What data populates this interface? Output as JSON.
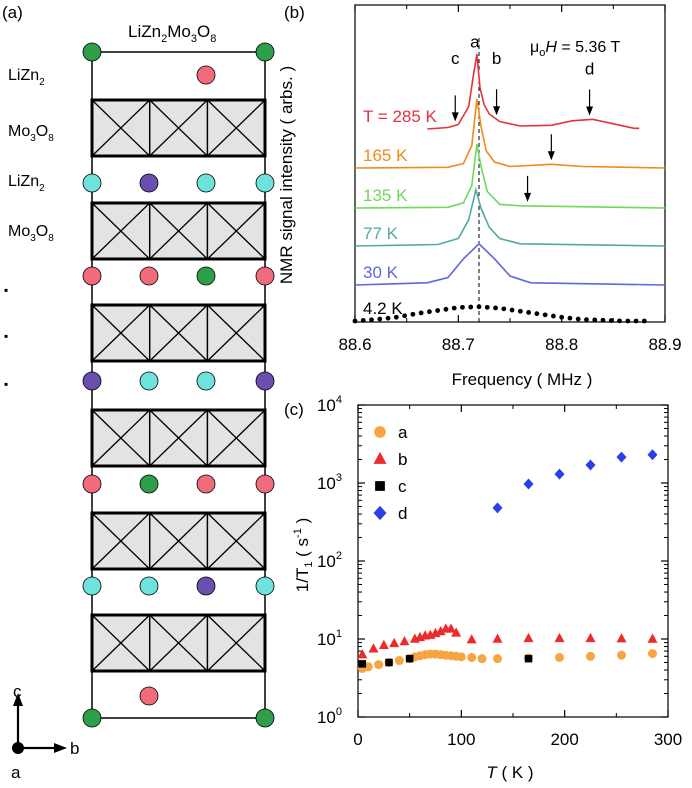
{
  "panel_a": {
    "label": "(a)",
    "formula": [
      "LiZn",
      "2",
      "Mo",
      "3",
      "O",
      "8"
    ],
    "layers": [
      {
        "parts": [
          "LiZn",
          "2"
        ]
      },
      {
        "parts": [
          "Mo",
          "3",
          "O",
          "8"
        ]
      },
      {
        "parts": [
          "LiZn",
          "2"
        ]
      },
      {
        "parts": [
          "Mo",
          "3",
          "O",
          "8"
        ]
      }
    ],
    "ellipsis": "▪",
    "axes": {
      "c": "c",
      "b": "b",
      "a": "a"
    },
    "atom_colors": {
      "green": "#2e9e4a",
      "pink": "#f06b7c",
      "cyan": "#6ee3dc",
      "purple": "#6a4fb0",
      "gray": "#e3e3e3"
    },
    "atom_rows": [
      [
        "green",
        "",
        "",
        "green"
      ],
      [
        "",
        "",
        "pink",
        ""
      ],
      [
        "cyan",
        "purple",
        "cyan",
        "cyan"
      ],
      [
        "pink",
        "pink",
        "green",
        "pink"
      ],
      [
        "purple",
        "cyan",
        "cyan",
        "purple"
      ],
      [
        "pink",
        "green",
        "pink",
        "pink"
      ],
      [
        "cyan",
        "cyan",
        "purple",
        "cyan"
      ],
      [
        "",
        "pink",
        "",
        ""
      ],
      [
        "green",
        "",
        "",
        "green"
      ]
    ]
  },
  "chart_data": [
    {
      "type": "line",
      "panel_label": "(b)",
      "xlabel": "Frequency ( MHz )",
      "ylabel": "NMR signal intensity ( arbs. )",
      "xlim": [
        88.6,
        88.9
      ],
      "xticks": [
        "88.6",
        "88.7",
        "88.8",
        "88.9"
      ],
      "field_parts": [
        "μ",
        "o",
        "H",
        " = 5.36 T"
      ],
      "dashed_line_x": 88.72,
      "peak_labels": [
        {
          "text": "a",
          "x": 88.716,
          "offset": 1.09
        },
        {
          "text": "c",
          "x": 88.697,
          "offset": 0.87
        },
        {
          "text": "b",
          "x": 88.737,
          "offset": 0.87
        },
        {
          "text": "d",
          "x": 88.827,
          "offset": 0.73
        }
      ],
      "series": [
        {
          "name": "T = 285 K",
          "color": "#e8313b",
          "offset": 5,
          "shape": [
            [
              88.67,
              0.0
            ],
            [
              88.69,
              0.02
            ],
            [
              88.7,
              0.06
            ],
            [
              88.71,
              0.3
            ],
            [
              88.715,
              0.75
            ],
            [
              88.718,
              1.0
            ],
            [
              88.721,
              0.55
            ],
            [
              88.725,
              0.32
            ],
            [
              88.73,
              0.2
            ],
            [
              88.74,
              0.1
            ],
            [
              88.76,
              0.04
            ],
            [
              88.79,
              0.05
            ],
            [
              88.81,
              0.11
            ],
            [
              88.83,
              0.13
            ],
            [
              88.85,
              0.07
            ],
            [
              88.87,
              0.01
            ],
            [
              88.875,
              0.01
            ]
          ]
        },
        {
          "name": "165 K",
          "color": "#f08a1a",
          "offset": 4,
          "shape": [
            [
              88.6,
              0.0
            ],
            [
              88.69,
              0.01
            ],
            [
              88.705,
              0.06
            ],
            [
              88.713,
              0.3
            ],
            [
              88.718,
              0.92
            ],
            [
              88.722,
              0.55
            ],
            [
              88.727,
              0.23
            ],
            [
              88.735,
              0.08
            ],
            [
              88.75,
              0.02
            ],
            [
              88.79,
              0.05
            ],
            [
              88.82,
              0.02
            ],
            [
              88.9,
              0.0
            ]
          ]
        },
        {
          "name": "135 K",
          "color": "#6ed95a",
          "offset": 3,
          "shape": [
            [
              88.6,
              0.0
            ],
            [
              88.69,
              0.01
            ],
            [
              88.705,
              0.07
            ],
            [
              88.713,
              0.3
            ],
            [
              88.718,
              0.85
            ],
            [
              88.722,
              0.55
            ],
            [
              88.728,
              0.22
            ],
            [
              88.74,
              0.05
            ],
            [
              88.76,
              0.03
            ],
            [
              88.9,
              0.0
            ]
          ]
        },
        {
          "name": "77 K",
          "color": "#55a8a3",
          "offset": 2,
          "shape": [
            [
              88.6,
              0.0
            ],
            [
              88.68,
              0.02
            ],
            [
              88.7,
              0.1
            ],
            [
              88.71,
              0.35
            ],
            [
              88.717,
              0.75
            ],
            [
              88.722,
              0.5
            ],
            [
              88.73,
              0.25
            ],
            [
              88.74,
              0.1
            ],
            [
              88.76,
              0.03
            ],
            [
              88.9,
              0.0
            ]
          ]
        },
        {
          "name": "30 K",
          "color": "#5e66e0",
          "offset": 1,
          "shape": [
            [
              88.6,
              0.0
            ],
            [
              88.67,
              0.03
            ],
            [
              88.69,
              0.1
            ],
            [
              88.705,
              0.35
            ],
            [
              88.72,
              0.55
            ],
            [
              88.735,
              0.35
            ],
            [
              88.75,
              0.12
            ],
            [
              88.77,
              0.03
            ],
            [
              88.9,
              0.0
            ]
          ]
        },
        {
          "name": "4.2 K",
          "color": "#000000",
          "offset": 0,
          "style": "dots",
          "shape": [
            [
              88.6,
              0.0
            ],
            [
              88.62,
              0.02
            ],
            [
              88.64,
              0.05
            ],
            [
              88.66,
              0.1
            ],
            [
              88.68,
              0.14
            ],
            [
              88.7,
              0.18
            ],
            [
              88.72,
              0.19
            ],
            [
              88.74,
              0.17
            ],
            [
              88.76,
              0.13
            ],
            [
              88.78,
              0.09
            ],
            [
              88.8,
              0.05
            ],
            [
              88.82,
              0.02
            ],
            [
              88.84,
              0.01
            ],
            [
              88.86,
              0.0
            ],
            [
              88.88,
              0.0
            ]
          ]
        }
      ],
      "arrows": [
        {
          "series": "T = 285 K",
          "x": 88.697
        },
        {
          "series": "T = 285 K",
          "x": 88.737
        },
        {
          "series": "T = 285 K",
          "x": 88.827
        },
        {
          "series": "165 K",
          "x": 88.79
        },
        {
          "series": "135 K",
          "x": 88.767
        }
      ]
    },
    {
      "type": "scatter",
      "panel_label": "(c)",
      "xlabel_parts": [
        "T",
        " ( K )"
      ],
      "ylabel_parts": [
        "1/T",
        "1",
        " ( s",
        "-1",
        " )"
      ],
      "x_scale": "linear",
      "y_scale": "log",
      "xlim": [
        0,
        300
      ],
      "ylim": [
        1,
        10000
      ],
      "xticks": [
        "0",
        "100",
        "200",
        "300"
      ],
      "yticks": [
        [
          "10",
          "0"
        ],
        [
          "10",
          "1"
        ],
        [
          "10",
          "2"
        ],
        [
          "10",
          "3"
        ],
        [
          "10",
          "4"
        ]
      ],
      "legend_position": "top-left",
      "series": [
        {
          "name": "a",
          "marker": "circle",
          "color": "#f7a540",
          "points": [
            [
              4.2,
              4.2
            ],
            [
              10,
              4.4
            ],
            [
              20,
              4.7
            ],
            [
              30,
              5.0
            ],
            [
              40,
              5.3
            ],
            [
              50,
              5.6
            ],
            [
              55,
              5.9
            ],
            [
              60,
              6.1
            ],
            [
              65,
              6.3
            ],
            [
              70,
              6.4
            ],
            [
              75,
              6.4
            ],
            [
              80,
              6.3
            ],
            [
              85,
              6.2
            ],
            [
              90,
              6.1
            ],
            [
              95,
              6.0
            ],
            [
              100,
              5.9
            ],
            [
              110,
              5.8
            ],
            [
              120,
              5.6
            ],
            [
              135,
              5.6
            ],
            [
              165,
              5.7
            ],
            [
              195,
              5.8
            ],
            [
              225,
              6.0
            ],
            [
              255,
              6.2
            ],
            [
              285,
              6.5
            ]
          ]
        },
        {
          "name": "b",
          "marker": "triangle",
          "color": "#ee2b2b",
          "points": [
            [
              4.2,
              6.3
            ],
            [
              15,
              7.5
            ],
            [
              25,
              8.3
            ],
            [
              35,
              8.8
            ],
            [
              45,
              9.3
            ],
            [
              55,
              10.0
            ],
            [
              60,
              10.5
            ],
            [
              65,
              11.0
            ],
            [
              70,
              11.2
            ],
            [
              75,
              11.8
            ],
            [
              80,
              12.5
            ],
            [
              85,
              13.5
            ],
            [
              90,
              13.5
            ],
            [
              95,
              12.0
            ],
            [
              110,
              9.8
            ],
            [
              135,
              10.0
            ],
            [
              165,
              10.2
            ],
            [
              195,
              10.2
            ],
            [
              225,
              10.2
            ],
            [
              255,
              10.1
            ],
            [
              285,
              10.0
            ]
          ]
        },
        {
          "name": "c",
          "marker": "square",
          "color": "#000000",
          "points": [
            [
              4.2,
              4.8
            ],
            [
              30,
              5.0
            ],
            [
              50,
              5.6
            ],
            [
              165,
              5.6
            ]
          ]
        },
        {
          "name": "d",
          "marker": "diamond",
          "color": "#2b3fe8",
          "points": [
            [
              135,
              480
            ],
            [
              165,
              970
            ],
            [
              195,
              1300
            ],
            [
              225,
              1700
            ],
            [
              255,
              2150
            ],
            [
              285,
              2300
            ]
          ]
        }
      ]
    }
  ]
}
